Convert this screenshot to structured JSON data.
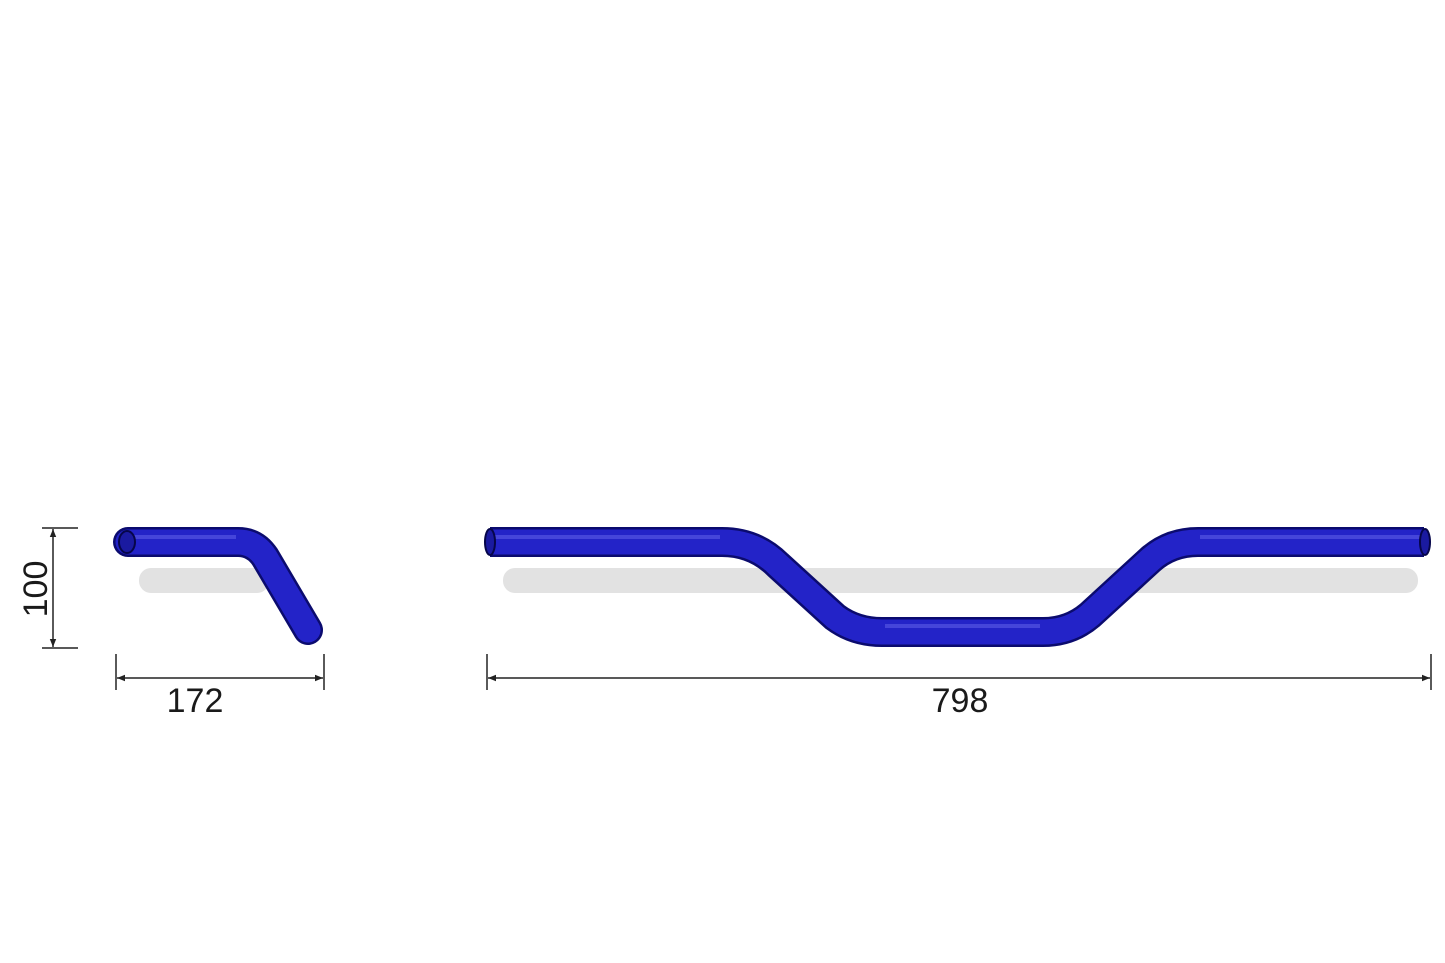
{
  "diagram": {
    "colors": {
      "tube": "#1f1fc4",
      "tube_edge": "#0b0b6e",
      "shadow": "#e2e2e2",
      "dimension_line": "#222222"
    },
    "dimensions": {
      "rise": "100",
      "pullback": "172",
      "width": "798"
    }
  }
}
